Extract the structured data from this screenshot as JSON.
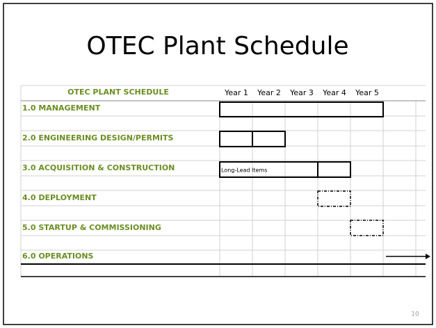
{
  "title": "OTEC Plant Schedule",
  "table": {
    "header": "OTEC PLANT SCHEDULE",
    "years": [
      "Year 1",
      "Year 2",
      "Year 3",
      "Year 4",
      "Year 5"
    ],
    "rows": [
      "1.0 MANAGEMENT",
      "2.0 ENGINEERING DESIGN/PERMITS",
      "3.0 ACQUISITION & CONSTRUCTION",
      "4.0 DEPLOYMENT",
      "5.0 STARTUP & COMMISSIONING",
      "6.0  OPERATIONS"
    ],
    "bar_label": "Long-Lead Items"
  },
  "page_number": "10"
}
